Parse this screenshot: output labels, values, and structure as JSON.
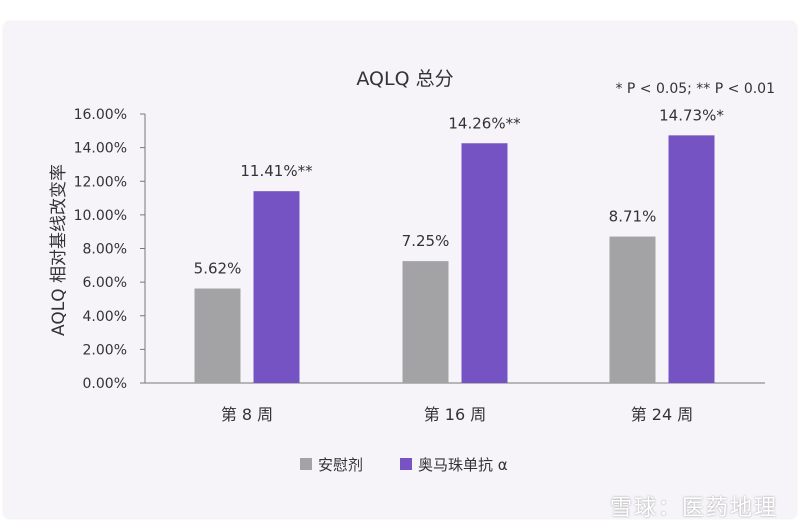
{
  "chart_data": {
    "type": "bar",
    "title": "AQLQ 总分",
    "annotation": "* P < 0.05;  ** P < 0.01",
    "ylabel": "AQLQ 相对基线改变率",
    "xlabel": "",
    "ylim": [
      0,
      16
    ],
    "yticks": [
      "0.00%",
      "2.00%",
      "4.00%",
      "6.00%",
      "8.00%",
      "10.00%",
      "12.00%",
      "14.00%",
      "16.00%"
    ],
    "categories": [
      "第 8 周",
      "第 16 周",
      "第 24 周"
    ],
    "series": [
      {
        "name": "安慰剂",
        "color": "#a3a3a5",
        "values": [
          5.62,
          7.25,
          8.71
        ],
        "labels": [
          "5.62%",
          "7.25%",
          "8.71%"
        ]
      },
      {
        "name": "奥马珠单抗 α",
        "color": "#7553c2",
        "values": [
          11.41,
          14.26,
          14.73
        ],
        "labels": [
          "11.41%**",
          "14.26%**",
          "14.73%*"
        ]
      }
    ],
    "grid": false,
    "legend": "bottom"
  },
  "watermark": "雪球：医药地理"
}
